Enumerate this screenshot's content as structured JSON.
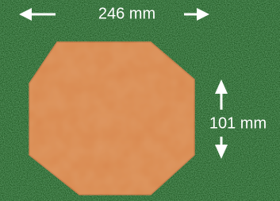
{
  "dimensions": {
    "width": "246 mm",
    "height": "101 mm"
  }
}
